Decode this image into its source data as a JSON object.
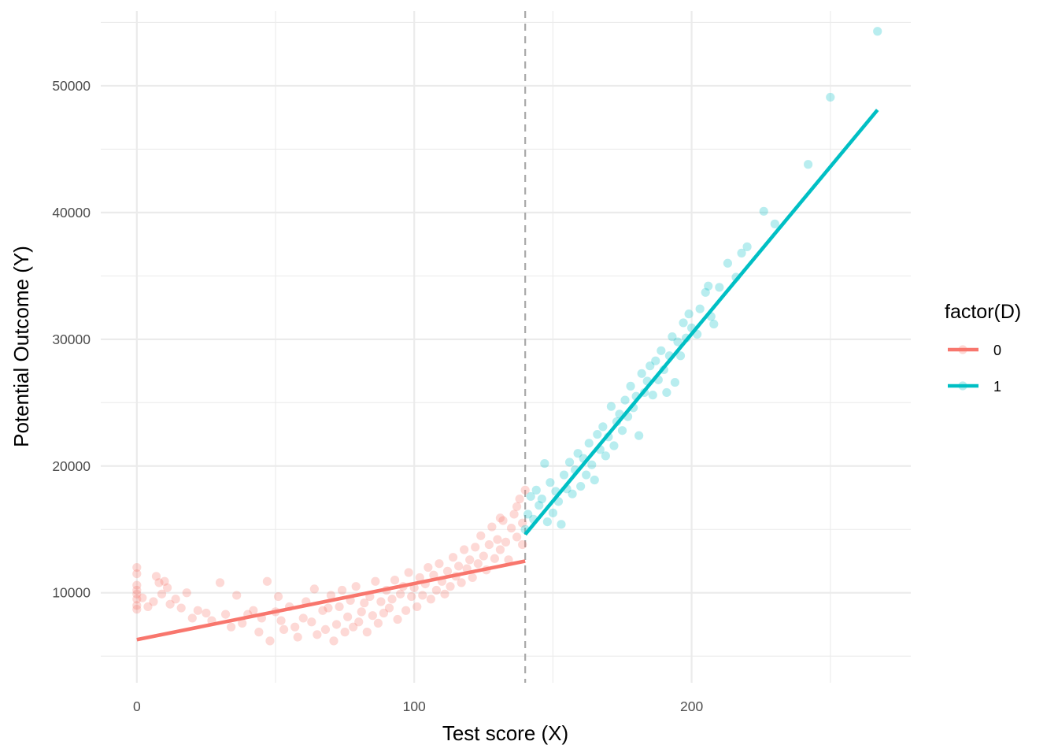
{
  "chart_data": {
    "type": "scatter",
    "xlabel": "Test score (X)",
    "ylabel": "Potential Outcome (Y)",
    "xlim": [
      -13,
      279
    ],
    "ylim": [
      2900,
      55900
    ],
    "x_ticks": [
      0,
      100,
      200
    ],
    "x_tick_labels": [
      "0",
      "100",
      "200"
    ],
    "y_ticks": [
      10000,
      20000,
      30000,
      40000,
      50000
    ],
    "y_tick_labels": [
      "10000",
      "20000",
      "30000",
      "40000",
      "50000"
    ],
    "cutoff": 140,
    "grid": true,
    "legend": {
      "title": "factor(D)",
      "position": "right",
      "entries": [
        {
          "label": "0",
          "color": "#F8766D"
        },
        {
          "label": "1",
          "color": "#00BFC4"
        }
      ]
    },
    "series": [
      {
        "name": "0",
        "color": "#F8766D",
        "x_range": [
          0,
          140
        ],
        "fit_line": {
          "x": [
            0,
            140
          ],
          "y": [
            6300,
            12500
          ]
        },
        "points": [
          [
            0,
            12000
          ],
          [
            0,
            11500
          ],
          [
            0,
            10600
          ],
          [
            0,
            10200
          ],
          [
            0,
            9900
          ],
          [
            0,
            9500
          ],
          [
            0,
            9000
          ],
          [
            0,
            8700
          ],
          [
            2,
            9600
          ],
          [
            4,
            8900
          ],
          [
            6,
            9300
          ],
          [
            7,
            11300
          ],
          [
            8,
            10800
          ],
          [
            9,
            9900
          ],
          [
            10,
            10900
          ],
          [
            11,
            10400
          ],
          [
            12,
            9100
          ],
          [
            14,
            9500
          ],
          [
            16,
            8800
          ],
          [
            18,
            10000
          ],
          [
            20,
            8000
          ],
          [
            22,
            8600
          ],
          [
            25,
            8400
          ],
          [
            27,
            7800
          ],
          [
            30,
            10800
          ],
          [
            32,
            8300
          ],
          [
            34,
            7300
          ],
          [
            36,
            9800
          ],
          [
            38,
            7600
          ],
          [
            40,
            8300
          ],
          [
            42,
            8600
          ],
          [
            44,
            6900
          ],
          [
            45,
            8000
          ],
          [
            47,
            10900
          ],
          [
            48,
            6200
          ],
          [
            50,
            8500
          ],
          [
            51,
            9700
          ],
          [
            52,
            7800
          ],
          [
            53,
            7100
          ],
          [
            55,
            8900
          ],
          [
            57,
            7300
          ],
          [
            58,
            6500
          ],
          [
            60,
            8000
          ],
          [
            61,
            9300
          ],
          [
            63,
            7700
          ],
          [
            64,
            10300
          ],
          [
            65,
            6700
          ],
          [
            67,
            8600
          ],
          [
            68,
            7100
          ],
          [
            69,
            8800
          ],
          [
            70,
            9800
          ],
          [
            71,
            6200
          ],
          [
            72,
            7500
          ],
          [
            73,
            8900
          ],
          [
            74,
            10200
          ],
          [
            75,
            6900
          ],
          [
            76,
            8100
          ],
          [
            77,
            9400
          ],
          [
            78,
            7300
          ],
          [
            79,
            10500
          ],
          [
            80,
            7700
          ],
          [
            81,
            8500
          ],
          [
            82,
            9200
          ],
          [
            83,
            6900
          ],
          [
            84,
            9700
          ],
          [
            85,
            8200
          ],
          [
            86,
            10900
          ],
          [
            87,
            7600
          ],
          [
            88,
            9300
          ],
          [
            89,
            8400
          ],
          [
            90,
            10200
          ],
          [
            91,
            8800
          ],
          [
            92,
            9500
          ],
          [
            93,
            11000
          ],
          [
            94,
            7900
          ],
          [
            95,
            9900
          ],
          [
            96,
            10500
          ],
          [
            97,
            8600
          ],
          [
            98,
            11600
          ],
          [
            99,
            9700
          ],
          [
            100,
            10400
          ],
          [
            101,
            8900
          ],
          [
            102,
            11200
          ],
          [
            103,
            9800
          ],
          [
            104,
            10700
          ],
          [
            105,
            12000
          ],
          [
            106,
            9500
          ],
          [
            107,
            11400
          ],
          [
            108,
            10200
          ],
          [
            109,
            12300
          ],
          [
            110,
            10900
          ],
          [
            111,
            9900
          ],
          [
            112,
            11700
          ],
          [
            113,
            10500
          ],
          [
            114,
            12800
          ],
          [
            115,
            11300
          ],
          [
            116,
            12100
          ],
          [
            117,
            10800
          ],
          [
            118,
            13400
          ],
          [
            119,
            11900
          ],
          [
            120,
            12600
          ],
          [
            121,
            11200
          ],
          [
            122,
            13600
          ],
          [
            123,
            12300
          ],
          [
            124,
            14500
          ],
          [
            125,
            12900
          ],
          [
            126,
            11800
          ],
          [
            127,
            13800
          ],
          [
            128,
            15200
          ],
          [
            129,
            12700
          ],
          [
            130,
            14200
          ],
          [
            131,
            13400
          ],
          [
            132,
            15700
          ],
          [
            133,
            14000
          ],
          [
            134,
            12600
          ],
          [
            135,
            15100
          ],
          [
            136,
            16200
          ],
          [
            137,
            14400
          ],
          [
            138,
            17400
          ],
          [
            139,
            15500
          ],
          [
            140,
            18100
          ],
          [
            139,
            13800
          ],
          [
            137,
            16800
          ],
          [
            131,
            15900
          ]
        ]
      },
      {
        "name": "1",
        "color": "#00BFC4",
        "x_range": [
          140,
          267
        ],
        "fit_line": {
          "x": [
            140,
            267
          ],
          "y": [
            14600,
            48100
          ]
        },
        "points": [
          [
            140,
            15000
          ],
          [
            141,
            16200
          ],
          [
            142,
            17600
          ],
          [
            143,
            15800
          ],
          [
            144,
            18100
          ],
          [
            145,
            16900
          ],
          [
            146,
            17400
          ],
          [
            147,
            20200
          ],
          [
            148,
            15600
          ],
          [
            149,
            18700
          ],
          [
            150,
            16300
          ],
          [
            151,
            18000
          ],
          [
            152,
            17200
          ],
          [
            153,
            15400
          ],
          [
            154,
            19300
          ],
          [
            155,
            18200
          ],
          [
            156,
            20300
          ],
          [
            157,
            17800
          ],
          [
            158,
            19700
          ],
          [
            159,
            21000
          ],
          [
            160,
            18400
          ],
          [
            161,
            20600
          ],
          [
            162,
            19300
          ],
          [
            163,
            21800
          ],
          [
            164,
            20100
          ],
          [
            165,
            18900
          ],
          [
            166,
            22500
          ],
          [
            167,
            21300
          ],
          [
            168,
            23100
          ],
          [
            169,
            20800
          ],
          [
            170,
            22300
          ],
          [
            171,
            24700
          ],
          [
            172,
            21600
          ],
          [
            173,
            23500
          ],
          [
            174,
            24100
          ],
          [
            175,
            22800
          ],
          [
            176,
            25200
          ],
          [
            177,
            23900
          ],
          [
            178,
            26300
          ],
          [
            179,
            24600
          ],
          [
            180,
            25500
          ],
          [
            181,
            22400
          ],
          [
            182,
            27300
          ],
          [
            183,
            25800
          ],
          [
            184,
            26700
          ],
          [
            185,
            27900
          ],
          [
            186,
            25600
          ],
          [
            187,
            28300
          ],
          [
            188,
            26800
          ],
          [
            189,
            29100
          ],
          [
            190,
            27600
          ],
          [
            191,
            25800
          ],
          [
            192,
            28700
          ],
          [
            193,
            30200
          ],
          [
            194,
            26600
          ],
          [
            195,
            29800
          ],
          [
            196,
            28700
          ],
          [
            197,
            31300
          ],
          [
            198,
            30100
          ],
          [
            199,
            32000
          ],
          [
            200,
            30900
          ],
          [
            202,
            30400
          ],
          [
            203,
            32400
          ],
          [
            205,
            33700
          ],
          [
            206,
            34200
          ],
          [
            207,
            31800
          ],
          [
            208,
            31200
          ],
          [
            210,
            34100
          ],
          [
            213,
            36000
          ],
          [
            216,
            34900
          ],
          [
            218,
            36800
          ],
          [
            220,
            37300
          ],
          [
            226,
            40100
          ],
          [
            230,
            39100
          ],
          [
            242,
            43800
          ],
          [
            250,
            49100
          ],
          [
            267,
            54300
          ]
        ]
      }
    ]
  }
}
